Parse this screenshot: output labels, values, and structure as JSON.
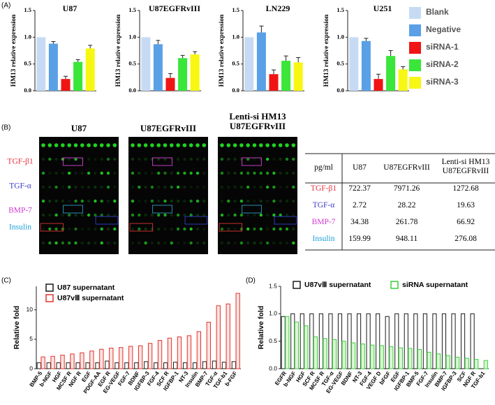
{
  "panel_a": {
    "label": "(A)",
    "legend": [
      {
        "name": "Blank",
        "color": "#c6dbf3"
      },
      {
        "name": "Negative",
        "color": "#5aa0e6"
      },
      {
        "name": "siRNA-1",
        "color": "#f01414"
      },
      {
        "name": "siRNA-2",
        "color": "#3ae63a"
      },
      {
        "name": "siRNA-3",
        "color": "#f7f713"
      }
    ]
  },
  "chart_data": [
    {
      "type": "bar",
      "title": "U87",
      "ylabel": "HM13 relative expression",
      "values": [
        1.0,
        0.88,
        0.22,
        0.54,
        0.79
      ],
      "errors": [
        0,
        0.04,
        0.05,
        0.04,
        0.06
      ],
      "ylim": [
        0,
        1.5
      ],
      "yticks": [
        {
          "value": 0,
          "label": "0.0"
        },
        {
          "value": 0.5,
          "label": "0.5"
        },
        {
          "value": 1,
          "label": "1.0"
        },
        {
          "value": 1.5,
          "label": "1.5"
        }
      ]
    },
    {
      "type": "bar",
      "title": "U87EGFRvIII",
      "ylabel": "HM13 relative expression",
      "values": [
        1.0,
        0.87,
        0.24,
        0.61,
        0.68
      ],
      "errors": [
        0,
        0.07,
        0.08,
        0.05,
        0.05
      ],
      "ylim": [
        0,
        1.5
      ],
      "yticks": [
        {
          "value": 0,
          "label": "0.0"
        },
        {
          "value": 0.5,
          "label": "0.5"
        },
        {
          "value": 1,
          "label": "1.0"
        },
        {
          "value": 1.5,
          "label": "1.5"
        }
      ]
    },
    {
      "type": "bar",
      "title": "LN229",
      "ylabel": "HM13 relative expression",
      "values": [
        1.0,
        1.09,
        0.31,
        0.56,
        0.53
      ],
      "errors": [
        0,
        0.12,
        0.08,
        0.09,
        0.09
      ],
      "ylim": [
        0,
        1.5
      ],
      "yticks": [
        {
          "value": 0,
          "label": "0.0"
        },
        {
          "value": 0.5,
          "label": "0.5"
        },
        {
          "value": 1,
          "label": "1.0"
        },
        {
          "value": 1.5,
          "label": "1.5"
        }
      ]
    },
    {
      "type": "bar",
      "title": "U251",
      "ylabel": "HM13 relative expression",
      "values": [
        1.0,
        0.93,
        0.22,
        0.65,
        0.4
      ],
      "errors": [
        0,
        0.05,
        0.09,
        0.1,
        0.05
      ],
      "ylim": [
        0,
        1.5
      ],
      "yticks": [
        {
          "value": 0,
          "label": "0.0"
        },
        {
          "value": 0.5,
          "label": "0.5"
        },
        {
          "value": 1,
          "label": "1.0"
        },
        {
          "value": 1.5,
          "label": "1.5"
        }
      ]
    },
    {
      "type": "bar",
      "panel_label": "(C)",
      "ylabel": "Relative fold",
      "legend": "upper left",
      "categories": [
        "BMP-5",
        "b-NGF",
        "HGF",
        "MCSF R",
        "NGF R",
        "EGF",
        "PDGF-AA",
        "EGF R",
        "EG-VEGF",
        "FGF-7",
        "BDNF",
        "IGFBP-3",
        "FGF-4",
        "SCF R",
        "IGFBP-1",
        "NT-3",
        "Insulin",
        "BMP-7",
        "TGF-α",
        "TGF-b1",
        "b-FGF"
      ],
      "series": [
        {
          "name": "U87 supernatant",
          "color": "#1a1a1a",
          "fill": "#ffffff",
          "values": [
            1.0,
            1.0,
            1.0,
            1.0,
            1.0,
            1.0,
            1.0,
            1.3,
            1.0,
            1.0,
            1.0,
            1.2,
            1.0,
            1.0,
            1.1,
            1.0,
            1.0,
            1.2,
            1.3,
            1.1,
            1.2
          ]
        },
        {
          "name": "U87vⅢ supernatant",
          "color": "#e0342c",
          "fill": "#fbe3e1",
          "values": [
            2.0,
            2.1,
            2.3,
            2.5,
            2.7,
            3.0,
            3.3,
            3.5,
            3.6,
            3.8,
            3.9,
            4.3,
            4.8,
            5.2,
            5.4,
            5.6,
            6.3,
            7.9,
            10.7,
            11.0,
            12.8
          ]
        }
      ],
      "ylim": [
        0,
        14
      ],
      "yticks": [
        0,
        5,
        10
      ]
    },
    {
      "type": "bar",
      "panel_label": "(D)",
      "ylabel": "Relative fold",
      "legend": "top",
      "categories": [
        "EGFR",
        "b-NGF",
        "HGF",
        "SCF R",
        "MCSF R",
        "TGF-α",
        "EG-VEGF",
        "BDNF",
        "NT-3",
        "FGF-4",
        "VEGF D",
        "bFGF",
        "EGF",
        "IGFBP-1",
        "BMP-5",
        "FGF-7",
        "Insulin",
        "BMP-7",
        "IGFBP-3",
        "SCF",
        "NGF R",
        "TGF-b1"
      ],
      "series": [
        {
          "name": "U87vⅢ supernatant",
          "color": "#1a1a1a",
          "fill": "#ffffff",
          "values": [
            0.95,
            1.0,
            1.0,
            1.0,
            1.0,
            1.0,
            1.0,
            1.0,
            1.0,
            1.0,
            1.0,
            0.95,
            1.0,
            1.0,
            1.0,
            1.0,
            1.0,
            1.0,
            1.0,
            1.0,
            1.0,
            null
          ]
        },
        {
          "name": "siRNA supernatant",
          "color": "#3ccf3c",
          "fill": "#dcf7d6",
          "values": [
            0.95,
            0.85,
            0.78,
            0.58,
            0.55,
            0.53,
            0.5,
            0.47,
            0.45,
            0.43,
            0.42,
            0.4,
            0.38,
            0.37,
            0.35,
            0.3,
            0.27,
            0.24,
            0.21,
            0.19,
            0.17,
            0.15
          ]
        }
      ],
      "ylim": [
        0,
        1.5
      ],
      "yticks": [
        {
          "value": 0,
          "label": "0.0"
        },
        {
          "value": 0.5,
          "label": "0.5"
        },
        {
          "value": 1,
          "label": "1.0"
        },
        {
          "value": 1.5,
          "label": "1.5"
        }
      ]
    }
  ],
  "panel_b": {
    "label": "(B)",
    "images": [
      "U87",
      "U87EGFRvIII",
      "Lenti-si HM13 U87EGFRvIII"
    ],
    "rows": [
      {
        "label": "TGF-β1",
        "color": "#e8323c"
      },
      {
        "label": "TGF-α",
        "color": "#3a3ac8"
      },
      {
        "label": "BMP-7",
        "color": "#d23ad2"
      },
      {
        "label": "Insulin",
        "color": "#1ea0d8"
      }
    ],
    "table": {
      "header": [
        "pg/ml",
        "U87",
        "U87EGFRvIII",
        "Lenti-si HM13 U87EGFRvIII"
      ],
      "rows": [
        [
          722.37,
          7971.26,
          1272.68
        ],
        [
          2.72,
          28.22,
          19.63
        ],
        [
          34.38,
          261.78,
          66.92
        ],
        [
          159.99,
          948.11,
          276.08
        ]
      ]
    }
  }
}
